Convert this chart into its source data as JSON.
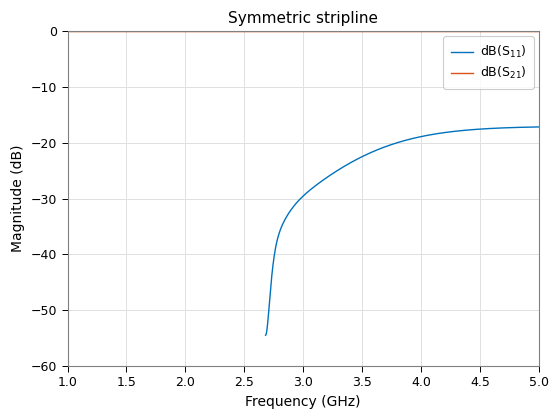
{
  "title": "Symmetric stripline",
  "xlabel": "Frequency (GHz)",
  "ylabel": "Magnitude (dB)",
  "xlim": [
    1,
    5
  ],
  "ylim": [
    -60,
    0
  ],
  "xticks": [
    1,
    1.5,
    2,
    2.5,
    3,
    3.5,
    4,
    4.5,
    5
  ],
  "yticks": [
    -60,
    -50,
    -40,
    -30,
    -20,
    -10,
    0
  ],
  "s11_color": "#0072BD",
  "s21_color": "#D95319",
  "legend_labels": [
    "dB(S$_{11}$)",
    "dB(S$_{21}$)"
  ],
  "background_color": "#FFFFFF",
  "grid_color": "#E0E0E0",
  "resonance_freq": 2.68,
  "resonance_depth": -54.5,
  "s21_level": -0.02,
  "title_fontsize": 11,
  "axis_fontsize": 10,
  "tick_fontsize": 9
}
